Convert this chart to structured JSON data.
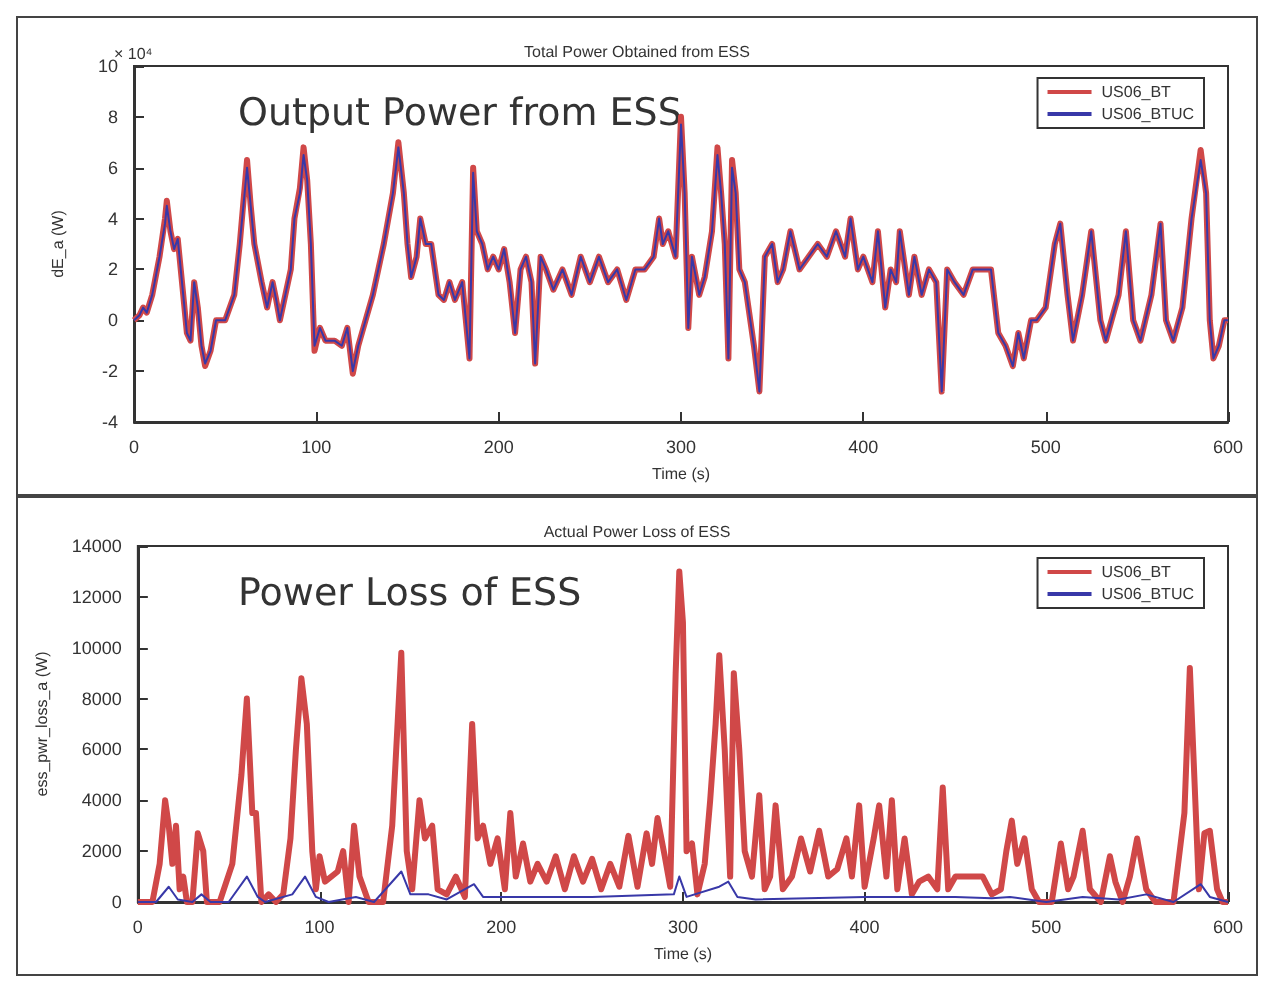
{
  "chart_data": [
    {
      "type": "line",
      "title": "Total Power Obtained from ESS",
      "xlabel": "Time (s)",
      "ylabel": "dE_a (W)",
      "annotations": [
        "Output Power from ESS",
        "× 10⁴"
      ],
      "xlim": [
        0,
        600
      ],
      "xticks": [
        0,
        100,
        200,
        300,
        400,
        500,
        600
      ],
      "ylim": [
        -4,
        10
      ],
      "yticks": [
        -4,
        -2,
        0,
        2,
        4,
        6,
        8,
        10
      ],
      "grid": false,
      "legend": "top right",
      "marker": "none",
      "line_style": "solid",
      "series": [
        {
          "name": "US06_BT",
          "color": "#d04848",
          "x": [
            0,
            3,
            5,
            7,
            10,
            14,
            17,
            18,
            20,
            22,
            24,
            27,
            29,
            31,
            33,
            35,
            37,
            39,
            42,
            45,
            50,
            55,
            58,
            62,
            64,
            66,
            70,
            73,
            76,
            78,
            80,
            83,
            86,
            88,
            91,
            93,
            95,
            97,
            99,
            102,
            105,
            110,
            114,
            117,
            120,
            123,
            127,
            131,
            137,
            142,
            145,
            148,
            150,
            152,
            155,
            157,
            160,
            163,
            167,
            170,
            173,
            176,
            180,
            184,
            186,
            188,
            191,
            194,
            197,
            200,
            203,
            206,
            209,
            212,
            215,
            218,
            220,
            223,
            226,
            230,
            235,
            240,
            245,
            250,
            255,
            260,
            265,
            270,
            275,
            280,
            285,
            288,
            290,
            293,
            297,
            300,
            302,
            304,
            306,
            310,
            313,
            317,
            320,
            322,
            324,
            326,
            328,
            330,
            332,
            335,
            340,
            343,
            346,
            350,
            353,
            356,
            360,
            365,
            370,
            375,
            380,
            385,
            390,
            393,
            397,
            400,
            405,
            408,
            412,
            415,
            418,
            420,
            425,
            428,
            432,
            436,
            440,
            443,
            446,
            450,
            455,
            460,
            465,
            470,
            474,
            478,
            482,
            485,
            488,
            492,
            495,
            500,
            505,
            508,
            512,
            515,
            520,
            525,
            530,
            533,
            540,
            544,
            548,
            552,
            558,
            563,
            566,
            570,
            575,
            580,
            585,
            588,
            590,
            592,
            595,
            598,
            600
          ],
          "values": [
            0,
            0.2,
            0.5,
            0.3,
            1,
            2.5,
            4,
            4.7,
            3.5,
            2.8,
            3.2,
            1,
            -0.5,
            -0.8,
            1.5,
            0.5,
            -1,
            -1.8,
            -1.2,
            0,
            0,
            1,
            3,
            6.3,
            4.5,
            3,
            1.5,
            0.5,
            1.5,
            0.8,
            0,
            1,
            2,
            4,
            5.2,
            6.8,
            5.5,
            3,
            -1.2,
            -0.3,
            -0.8,
            -0.8,
            -1,
            -0.3,
            -2.1,
            -1,
            0,
            1,
            3,
            5,
            7,
            5,
            3,
            1.7,
            2.5,
            4,
            3,
            3,
            1,
            0.8,
            1.5,
            0.8,
            1.5,
            -1.5,
            6,
            3.5,
            3,
            2,
            2.5,
            2,
            2.8,
            1.5,
            -0.5,
            2,
            2.5,
            1.5,
            -1.7,
            2.5,
            2,
            1.2,
            2,
            1,
            2.5,
            1.5,
            2.5,
            1.5,
            2,
            0.8,
            2,
            2,
            2.5,
            4,
            3,
            3.5,
            2.5,
            8,
            5,
            -0.3,
            2.5,
            1,
            1.7,
            3.5,
            6.8,
            5,
            3,
            -1.5,
            6.3,
            5,
            2,
            1.5,
            -1,
            -2.8,
            2.5,
            3,
            1.5,
            2,
            3.5,
            2,
            2.5,
            3,
            2.5,
            3.5,
            2.5,
            4,
            2,
            2.5,
            1.5,
            3.5,
            0.5,
            2,
            1.5,
            3.5,
            1,
            2.5,
            1,
            2,
            1.5,
            -2.8,
            2,
            1.5,
            1,
            2,
            2,
            2,
            -0.5,
            -1,
            -1.8,
            -0.5,
            -1.5,
            0,
            0,
            0.5,
            3,
            3.8,
            1,
            -0.8,
            1,
            3.5,
            0,
            -0.8,
            1,
            3.5,
            0,
            -0.8,
            1,
            3.8,
            0,
            -0.8,
            0.5,
            4,
            6.7,
            5,
            0,
            -1.5,
            -1,
            0,
            0
          ]
        },
        {
          "name": "US06_BTUC",
          "color": "#3838a8",
          "x": [
            0,
            3,
            5,
            7,
            10,
            14,
            17,
            18,
            20,
            22,
            24,
            27,
            29,
            31,
            33,
            35,
            37,
            39,
            42,
            45,
            50,
            55,
            58,
            62,
            64,
            66,
            70,
            73,
            76,
            78,
            80,
            83,
            86,
            88,
            91,
            93,
            95,
            97,
            99,
            102,
            105,
            110,
            114,
            117,
            120,
            123,
            127,
            131,
            137,
            142,
            145,
            148,
            150,
            152,
            155,
            157,
            160,
            163,
            167,
            170,
            173,
            176,
            180,
            184,
            186,
            188,
            191,
            194,
            197,
            200,
            203,
            206,
            209,
            212,
            215,
            218,
            220,
            223,
            226,
            230,
            235,
            240,
            245,
            250,
            255,
            260,
            265,
            270,
            275,
            280,
            285,
            288,
            290,
            293,
            297,
            300,
            302,
            304,
            306,
            310,
            313,
            317,
            320,
            322,
            324,
            326,
            328,
            330,
            332,
            335,
            340,
            343,
            346,
            350,
            353,
            356,
            360,
            365,
            370,
            375,
            380,
            385,
            390,
            393,
            397,
            400,
            405,
            408,
            412,
            415,
            418,
            420,
            425,
            428,
            432,
            436,
            440,
            443,
            446,
            450,
            455,
            460,
            465,
            470,
            474,
            478,
            482,
            485,
            488,
            492,
            495,
            500,
            505,
            508,
            512,
            515,
            520,
            525,
            530,
            533,
            540,
            544,
            548,
            552,
            558,
            563,
            566,
            570,
            575,
            580,
            585,
            588,
            590,
            592,
            595,
            598,
            600
          ],
          "values": [
            0,
            0.2,
            0.5,
            0.3,
            1,
            2.5,
            3.8,
            4.5,
            3.5,
            2.8,
            3.2,
            1,
            -0.5,
            -0.8,
            1.5,
            0.5,
            -1,
            -1.7,
            -1.2,
            0,
            0,
            1,
            3,
            6,
            4.5,
            3,
            1.5,
            0.5,
            1.5,
            0.8,
            0,
            1,
            2,
            4,
            5,
            6.5,
            5.5,
            3,
            -1,
            -0.3,
            -0.8,
            -0.8,
            -1,
            -0.3,
            -2,
            -1,
            0,
            1,
            3,
            5,
            6.8,
            5,
            3,
            1.7,
            2.5,
            4,
            3,
            3,
            1,
            0.8,
            1.5,
            0.8,
            1.5,
            -1.5,
            5.8,
            3.5,
            3,
            2,
            2.5,
            2,
            2.8,
            1.5,
            -0.5,
            2,
            2.5,
            1.5,
            -1.7,
            2.5,
            2,
            1.2,
            2,
            1,
            2.5,
            1.5,
            2.5,
            1.5,
            2,
            0.8,
            2,
            2,
            2.5,
            4,
            3,
            3.5,
            2.5,
            7.7,
            5,
            -0.3,
            2.5,
            1,
            1.7,
            3.5,
            6.5,
            5,
            3,
            -1.5,
            6,
            5,
            2,
            1.5,
            -1,
            -2.8,
            2.5,
            3,
            1.5,
            2,
            3.5,
            2,
            2.5,
            3,
            2.5,
            3.5,
            2.5,
            4,
            2,
            2.5,
            1.5,
            3.5,
            0.5,
            2,
            1.5,
            3.5,
            1,
            2.5,
            1,
            2,
            1.5,
            -2.8,
            2,
            1.5,
            1,
            2,
            2,
            2,
            -0.5,
            -1,
            -1.8,
            -0.5,
            -1.5,
            0,
            0,
            0.5,
            3,
            3.8,
            1,
            -0.8,
            1,
            3.5,
            0,
            -0.8,
            1,
            3.5,
            0,
            -0.8,
            1,
            3.8,
            0,
            -0.8,
            0.5,
            4,
            6.3,
            5,
            0,
            -1.5,
            -1,
            0,
            0
          ]
        }
      ]
    },
    {
      "type": "line",
      "title": "Actual Power Loss of ESS",
      "xlabel": "Time (s)",
      "ylabel": "ess_pwr_loss_a (W)",
      "annotations": [
        "Power Loss of ESS"
      ],
      "xlim": [
        0,
        600
      ],
      "xticks": [
        0,
        100,
        200,
        300,
        400,
        500,
        600
      ],
      "ylim": [
        0,
        14000
      ],
      "yticks": [
        0,
        2000,
        4000,
        6000,
        8000,
        10000,
        12000,
        14000
      ],
      "grid": false,
      "legend": "top right",
      "marker": "none",
      "line_style": "solid",
      "series": [
        {
          "name": "US06_BT",
          "color": "#d04848",
          "x": [
            0,
            8,
            12,
            15,
            17,
            19,
            21,
            23,
            25,
            27,
            30,
            33,
            36,
            38,
            45,
            52,
            57,
            60,
            63,
            65,
            68,
            72,
            76,
            80,
            84,
            87,
            90,
            93,
            96,
            98,
            100,
            103,
            110,
            113,
            116,
            119,
            122,
            127,
            135,
            140,
            145,
            148,
            151,
            155,
            158,
            162,
            165,
            170,
            175,
            180,
            184,
            187,
            190,
            194,
            198,
            202,
            205,
            208,
            212,
            216,
            220,
            225,
            230,
            235,
            240,
            245,
            250,
            255,
            260,
            265,
            270,
            275,
            280,
            283,
            286,
            290,
            293,
            296,
            298,
            300,
            302,
            305,
            308,
            312,
            315,
            318,
            320,
            323,
            326,
            328,
            331,
            334,
            338,
            342,
            345,
            348,
            351,
            355,
            360,
            365,
            370,
            375,
            380,
            385,
            390,
            393,
            397,
            400,
            405,
            408,
            412,
            415,
            418,
            422,
            426,
            430,
            435,
            440,
            443,
            446,
            450,
            460,
            465,
            470,
            475,
            478,
            481,
            484,
            488,
            492,
            496,
            503,
            508,
            512,
            515,
            520,
            524,
            530,
            535,
            538,
            542,
            546,
            550,
            555,
            560,
            570,
            576,
            579,
            582,
            584,
            587,
            590,
            594,
            597,
            600
          ],
          "values": [
            0,
            0,
            1500,
            4000,
            3000,
            1500,
            3000,
            500,
            1000,
            0,
            0,
            2700,
            2000,
            0,
            0,
            1500,
            5000,
            8000,
            3500,
            3500,
            0,
            300,
            0,
            300,
            2500,
            6000,
            8800,
            7000,
            2000,
            500,
            1800,
            800,
            1200,
            2000,
            0,
            3000,
            1000,
            0,
            0,
            3000,
            9800,
            2000,
            500,
            4000,
            2500,
            3000,
            500,
            300,
            1000,
            200,
            7000,
            2500,
            3000,
            1500,
            2500,
            500,
            3500,
            1000,
            2300,
            800,
            1500,
            800,
            1800,
            500,
            1800,
            800,
            1700,
            500,
            1500,
            600,
            2600,
            600,
            2700,
            1500,
            3300,
            1800,
            600,
            9000,
            13000,
            11000,
            2000,
            2300,
            300,
            1500,
            4000,
            7000,
            9700,
            6000,
            1000,
            9000,
            6000,
            2000,
            1000,
            4200,
            500,
            1000,
            3800,
            500,
            1000,
            2500,
            1200,
            2800,
            1000,
            1300,
            2500,
            1000,
            3800,
            600,
            2500,
            3800,
            1000,
            4000,
            500,
            2500,
            300,
            800,
            1000,
            500,
            4500,
            500,
            1000,
            1000,
            1000,
            300,
            500,
            2000,
            3200,
            1500,
            2500,
            500,
            0,
            0,
            2300,
            500,
            1000,
            2800,
            500,
            0,
            1800,
            800,
            0,
            1000,
            2500,
            500,
            0,
            0,
            3500,
            9200,
            4000,
            500,
            2700,
            2800,
            500,
            0,
            0
          ]
        },
        {
          "name": "US06_BTUC",
          "color": "#3838a8",
          "x": [
            0,
            10,
            17,
            22,
            30,
            35,
            40,
            50,
            60,
            66,
            70,
            85,
            92,
            98,
            105,
            120,
            130,
            145,
            150,
            160,
            170,
            185,
            190,
            200,
            250,
            295,
            298,
            302,
            320,
            325,
            330,
            340,
            400,
            450,
            470,
            480,
            500,
            520,
            540,
            555,
            570,
            585,
            590,
            600
          ],
          "values": [
            0,
            0,
            600,
            100,
            0,
            300,
            0,
            0,
            1000,
            200,
            0,
            300,
            1000,
            200,
            0,
            200,
            0,
            1200,
            300,
            300,
            100,
            700,
            200,
            200,
            200,
            300,
            1000,
            200,
            600,
            800,
            200,
            100,
            200,
            200,
            150,
            200,
            0,
            200,
            100,
            300,
            0,
            700,
            200,
            0
          ]
        }
      ]
    }
  ]
}
